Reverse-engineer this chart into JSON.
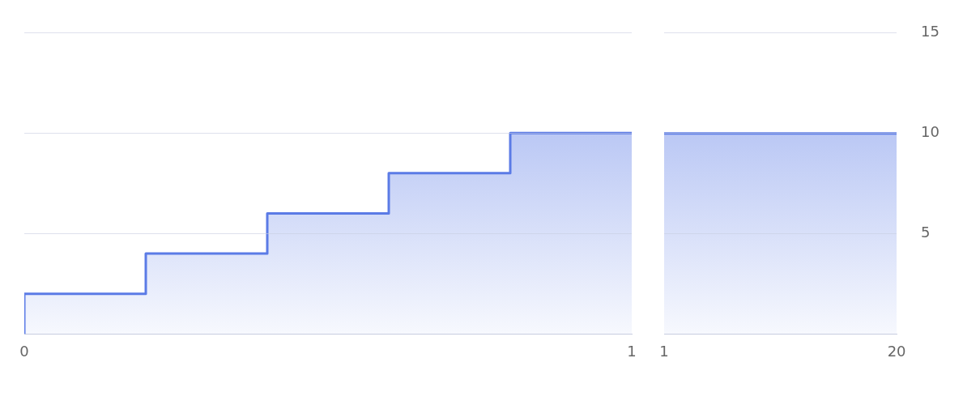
{
  "chart_data": [
    {
      "type": "area",
      "series": [
        {
          "x": [
            0,
            0,
            0.2,
            0.2,
            0.4,
            0.4,
            0.6,
            0.6,
            0.8,
            0.8,
            1
          ],
          "values": [
            0,
            2,
            2,
            4,
            4,
            6,
            6,
            8,
            8,
            10,
            10
          ],
          "color": "#5b7be6"
        }
      ],
      "xlim": [
        0,
        1
      ],
      "xticks": [
        0,
        1
      ],
      "ylim": [
        0,
        15
      ],
      "yticks": [
        5,
        10,
        15
      ],
      "grid": "y",
      "tick_labels": "x"
    },
    {
      "type": "area",
      "series": [
        {
          "x": [
            1,
            20
          ],
          "values": [
            10,
            10
          ],
          "color": "#5b7be6"
        }
      ],
      "xlim": [
        1,
        20
      ],
      "xticks": [
        1,
        20
      ],
      "ylim": [
        0,
        15
      ],
      "yticks": [
        5,
        10,
        15
      ],
      "grid": "y"
    }
  ]
}
